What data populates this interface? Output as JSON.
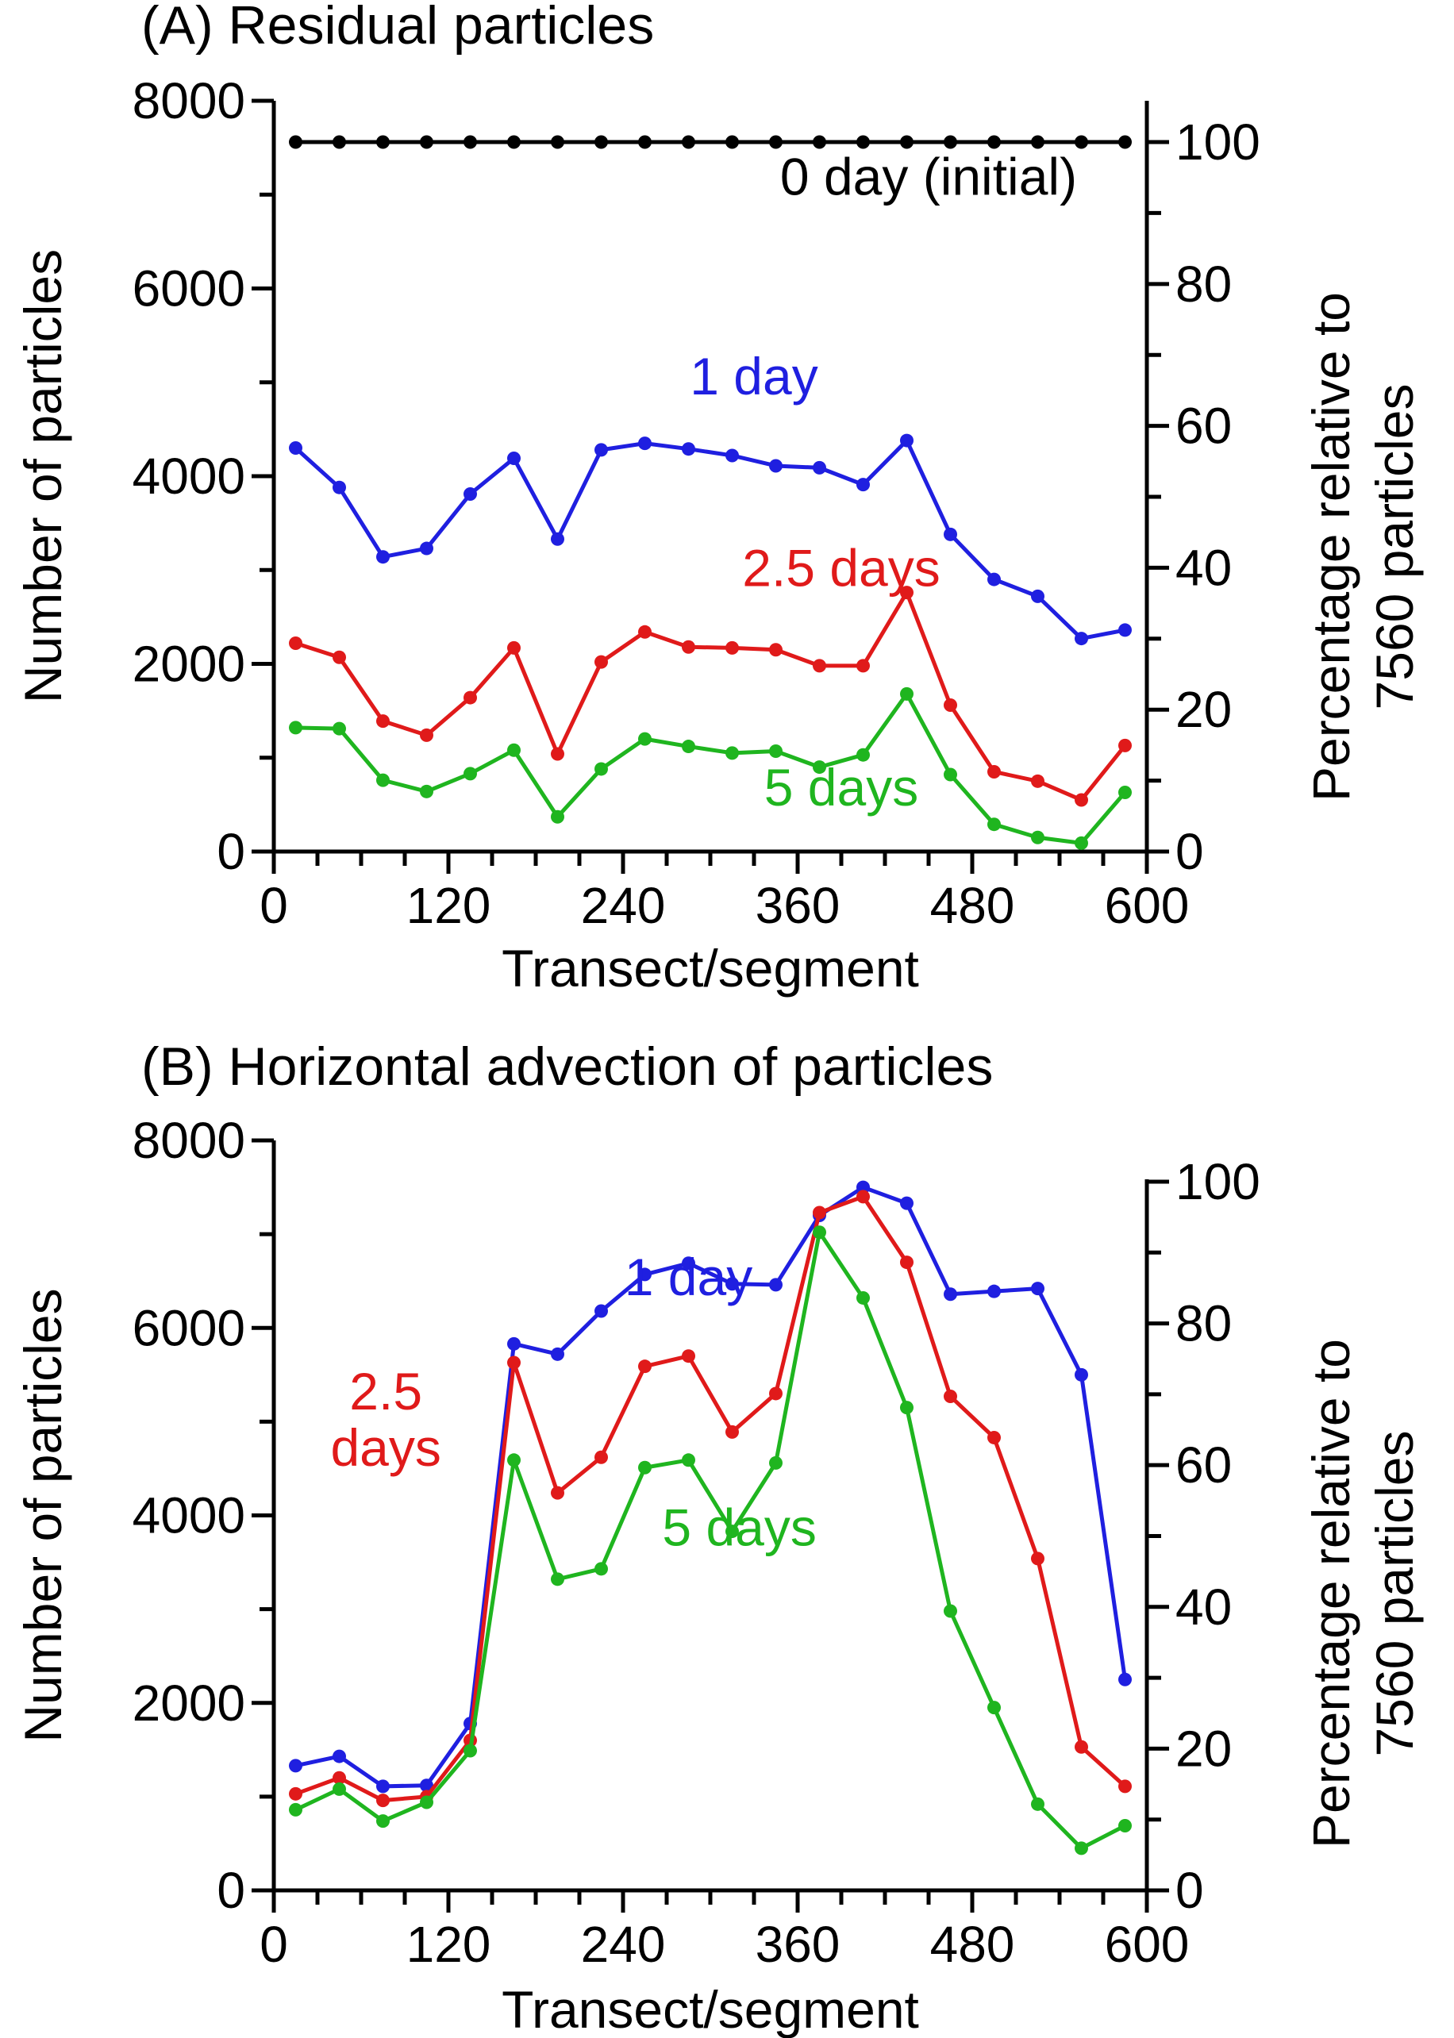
{
  "chart_data": [
    {
      "type": "line",
      "title": "(A) Residual particles",
      "xlabel": "Transect/segment",
      "ylabel": "Number of particles",
      "y2label": [
        "Percentage relative to",
        "7560 particles"
      ],
      "xlim": [
        0,
        600
      ],
      "ylim": [
        0,
        8000
      ],
      "y2lim": [
        0,
        105.82
      ],
      "xticks": [
        "0",
        "120",
        "240",
        "360",
        "480",
        "600"
      ],
      "yticks": [
        "0",
        "2000",
        "4000",
        "6000",
        "8000"
      ],
      "y2ticks": [
        "0",
        "20",
        "40",
        "60",
        "80",
        "100"
      ],
      "x": [
        15,
        45,
        75,
        105,
        135,
        165,
        195,
        225,
        255,
        285,
        315,
        345,
        375,
        405,
        435,
        465,
        495,
        525,
        555,
        585
      ],
      "series": [
        {
          "name": "0 day (initial)",
          "color": "#000000",
          "label_pos": [
            450,
            7000
          ],
          "values": [
            7560,
            7560,
            7560,
            7560,
            7560,
            7560,
            7560,
            7560,
            7560,
            7560,
            7560,
            7560,
            7560,
            7560,
            7560,
            7560,
            7560,
            7560,
            7560,
            7560
          ]
        },
        {
          "name": "1 day",
          "color": "#1f1fe0",
          "label_pos": [
            330,
            4870
          ],
          "values": [
            4300,
            3880,
            3140,
            3230,
            3810,
            4190,
            3330,
            4280,
            4350,
            4290,
            4220,
            4110,
            4090,
            3910,
            4380,
            3380,
            2900,
            2720,
            2270,
            2360
          ]
        },
        {
          "name": "2.5 days",
          "color": "#e01a1a",
          "label_pos": [
            390,
            2830
          ],
          "values": [
            2220,
            2070,
            1390,
            1240,
            1640,
            2170,
            1040,
            2020,
            2340,
            2180,
            2170,
            2150,
            1980,
            1980,
            2760,
            1560,
            850,
            750,
            550,
            1130
          ]
        },
        {
          "name": "5 days",
          "color": "#1fb51f",
          "label_pos": [
            390,
            490
          ],
          "values": [
            1320,
            1310,
            760,
            640,
            830,
            1080,
            370,
            880,
            1200,
            1120,
            1050,
            1070,
            900,
            1030,
            1680,
            820,
            290,
            150,
            90,
            630
          ]
        }
      ]
    },
    {
      "type": "line",
      "title": "(B) Horizontal advection of particles",
      "xlabel": "Transect/segment",
      "ylabel": "Number of particles",
      "y2label": [
        "Percentage relative to",
        "7560 particles"
      ],
      "xlim": [
        0,
        600
      ],
      "ylim": [
        0,
        8000
      ],
      "y2lim": [
        0,
        105.82
      ],
      "xticks": [
        "0",
        "120",
        "240",
        "360",
        "480",
        "600"
      ],
      "yticks": [
        "0",
        "2000",
        "4000",
        "6000",
        "8000"
      ],
      "y2ticks": [
        "0",
        "20",
        "40",
        "60",
        "80",
        "100"
      ],
      "x": [
        15,
        45,
        75,
        105,
        135,
        165,
        195,
        225,
        255,
        285,
        315,
        345,
        375,
        405,
        435,
        465,
        495,
        525,
        555,
        585
      ],
      "series": [
        {
          "name": "1 day",
          "color": "#1f1fe0",
          "label_pos": [
            285,
            6350
          ],
          "values": [
            1330,
            1430,
            1110,
            1120,
            1780,
            5830,
            5720,
            6180,
            6570,
            6690,
            6470,
            6460,
            7200,
            7500,
            7330,
            6360,
            6390,
            6420,
            5500,
            2250
          ]
        },
        {
          "name": "2.5 days",
          "color": "#e01a1a",
          "label_pos": [
            77,
            5130,
            4530
          ],
          "values": [
            1030,
            1200,
            960,
            1000,
            1600,
            5630,
            4240,
            4620,
            5590,
            5700,
            4890,
            5300,
            7230,
            7400,
            6700,
            5270,
            4830,
            3540,
            1530,
            1110
          ]
        },
        {
          "name": "5 days",
          "color": "#1fb51f",
          "label_pos": [
            320,
            3680
          ],
          "values": [
            860,
            1080,
            740,
            940,
            1490,
            4590,
            3320,
            3430,
            4510,
            4590,
            3830,
            4560,
            7020,
            6320,
            5150,
            2980,
            1950,
            920,
            450,
            690
          ]
        }
      ]
    }
  ]
}
